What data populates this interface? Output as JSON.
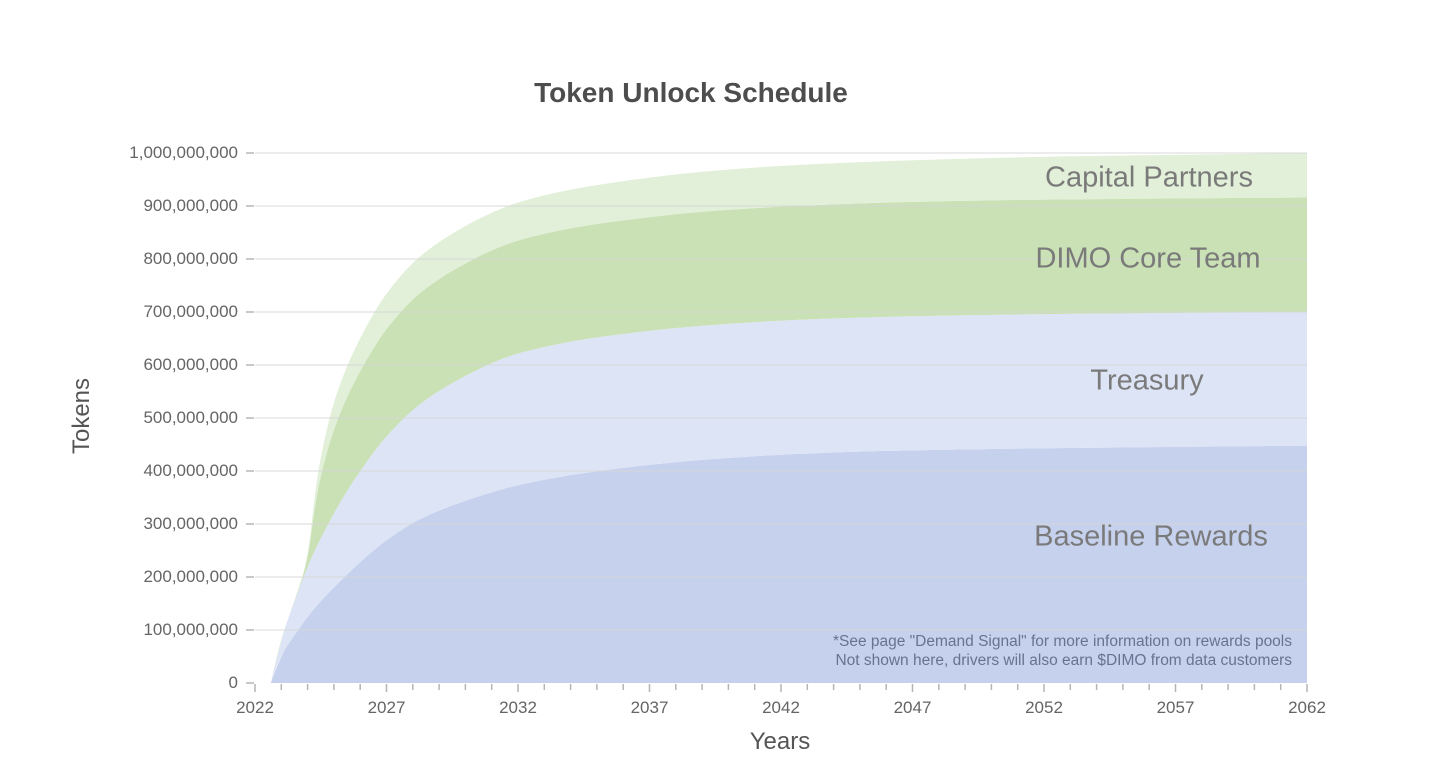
{
  "title": "Token Unlock Schedule",
  "annotation": {
    "line1": "*See page \"Demand Signal\" for more information on rewards pools",
    "line2": "Not shown here, drivers will also earn $DIMO from data customers"
  },
  "colors": {
    "background": "#ffffff",
    "gridline": "#d6d6d6",
    "tick": "#b5b5b5",
    "title_text": "#4d4d4d",
    "axis_text": "#656565",
    "series_label_text": "#7a7a7a",
    "annotation_text": "#68738f"
  },
  "chart_data": {
    "type": "area",
    "stacked": true,
    "title": "Token Unlock Schedule",
    "xlabel": "Years",
    "ylabel": "Tokens",
    "x_range": [
      2022,
      2062
    ],
    "ylim": [
      0,
      1000000000
    ],
    "grid": true,
    "legend_position": "labels-inside-areas",
    "x_ticks": [
      2022,
      2027,
      2032,
      2037,
      2042,
      2047,
      2052,
      2057,
      2062
    ],
    "x_minor_tick_step_years": 1,
    "y_tick_values_millions": [
      0,
      100,
      200,
      300,
      400,
      500,
      600,
      700,
      800,
      900,
      1000
    ],
    "y_tick_labels": [
      "0",
      "100,000,000",
      "200,000,000",
      "300,000,000",
      "400,000,000",
      "500,000,000",
      "600,000,000",
      "700,000,000",
      "800,000,000",
      "900,000,000",
      "1,000,000,000"
    ],
    "units": "tokens (values in millions, stacked bottom-to-top)",
    "years": [
      2022.6,
      2023,
      2023.5,
      2024,
      2024.3,
      2024.6,
      2025,
      2025.5,
      2026,
      2026.5,
      2027,
      2028,
      2029,
      2030,
      2031,
      2032,
      2034,
      2036,
      2038,
      2040,
      2042,
      2045,
      2048,
      2052,
      2056,
      2062
    ],
    "series": [
      {
        "name": "Baseline Rewards",
        "color": "#c6d1ee",
        "values_millions": [
          0,
          55,
          90,
          125,
          143,
          160,
          180,
          205,
          228,
          250,
          270,
          303,
          326,
          344,
          360,
          374,
          393,
          406,
          417,
          425,
          431,
          437,
          440,
          443,
          445,
          448
        ]
      },
      {
        "name": "Treasury",
        "color": "#dde4f5",
        "values_millions": [
          0,
          30,
          65,
          95,
          110,
          123,
          140,
          158,
          172,
          185,
          196,
          214,
          226,
          236,
          244,
          249,
          252,
          253,
          253,
          253,
          253,
          253,
          253,
          253,
          253,
          252
        ]
      },
      {
        "name": "DIMO Core Team",
        "color": "#c9e1b5",
        "values_millions": [
          0,
          0,
          0,
          8,
          90,
          130,
          160,
          178,
          189,
          197,
          203,
          209,
          211,
          212,
          213,
          213,
          214,
          214,
          215,
          215,
          215,
          215,
          216,
          216,
          216,
          216
        ]
      },
      {
        "name": "Capital Partners",
        "color": "#e2f0d9",
        "values_millions": [
          0,
          0,
          0,
          2,
          25,
          40,
          52,
          58,
          62,
          65,
          67,
          69,
          70,
          71,
          71,
          72,
          73,
          74,
          75,
          76,
          77,
          78,
          79,
          81,
          82,
          84
        ]
      }
    ]
  }
}
